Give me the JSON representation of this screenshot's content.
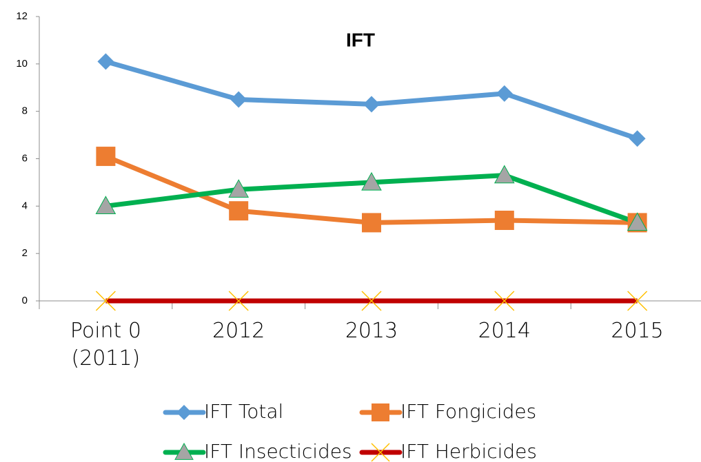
{
  "chart_data": {
    "type": "line",
    "title": "IFT",
    "categories": [
      "Point 0 (2011)",
      "2012",
      "2013",
      "2014",
      "2015"
    ],
    "series": [
      {
        "name": "IFT Total",
        "color": "#5b9bd5",
        "marker": "diamond",
        "marker_color": "#5b9bd5",
        "values": [
          10.1,
          8.5,
          8.3,
          8.75,
          6.85
        ]
      },
      {
        "name": "IFT Fongicides",
        "color": "#ed7d31",
        "marker": "square",
        "marker_color": "#ed7d31",
        "values": [
          6.1,
          3.8,
          3.3,
          3.4,
          3.3
        ]
      },
      {
        "name": "IFT Insecticides",
        "color": "#00b050",
        "marker": "triangle",
        "marker_color": "#a5a5a5",
        "values": [
          4.0,
          4.7,
          5.0,
          5.3,
          3.3
        ]
      },
      {
        "name": "IFT Herbicides",
        "color": "#c00000",
        "marker": "x",
        "marker_color": "#ffc000",
        "values": [
          0,
          0,
          0,
          0,
          0
        ]
      }
    ],
    "ylim": [
      0,
      12
    ],
    "yticks": [
      0,
      2,
      4,
      6,
      8,
      10,
      12
    ],
    "grid": false,
    "legend": "bottom"
  }
}
